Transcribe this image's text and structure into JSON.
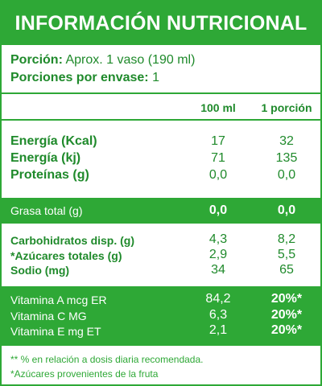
{
  "title": "INFORMACIÓN NUTRICIONAL",
  "portion": {
    "label": "Porción:",
    "value": "Aprox. 1 vaso (190 ml)",
    "servings_label": "Porciones por envase:",
    "servings_value": "1"
  },
  "columns": {
    "col1": "100 ml",
    "col2": "1 porción"
  },
  "main_rows": [
    {
      "label": "Energía (Kcal)",
      "v100": "17",
      "vportion": "32"
    },
    {
      "label": "Energía (kj)",
      "v100": "71",
      "vportion": "135"
    },
    {
      "label": "Proteínas (g)",
      "v100": "0,0",
      "vportion": "0,0"
    }
  ],
  "fat_row": {
    "label": "Grasa total (g)",
    "v100": "0,0",
    "vportion": "0,0"
  },
  "carb_rows": [
    {
      "label": "Carbohidratos disp. (g)",
      "v100": "4,3",
      "vportion": "8,2"
    },
    {
      "label": "*Azúcares totales (g)",
      "v100": "2,9",
      "vportion": "5,5"
    },
    {
      "label": "Sodio (mg)",
      "v100": "34",
      "vportion": "65"
    }
  ],
  "vitamin_rows": [
    {
      "label": "Vitamina A mcg ER",
      "v100": "84,2",
      "vportion": "20%*"
    },
    {
      "label": "Vitamina C MG",
      "v100": "6,3",
      "vportion": "20%*"
    },
    {
      "label": "Vitamina E mg ET",
      "v100": "2,1",
      "vportion": "20%*"
    }
  ],
  "footnotes": [
    "** % en relación a dosis diaria recomendada.",
    "*Azúcares provenientes de la fruta"
  ],
  "colors": {
    "brand_green": "#2ea836",
    "text_green": "#1f8a2b"
  }
}
